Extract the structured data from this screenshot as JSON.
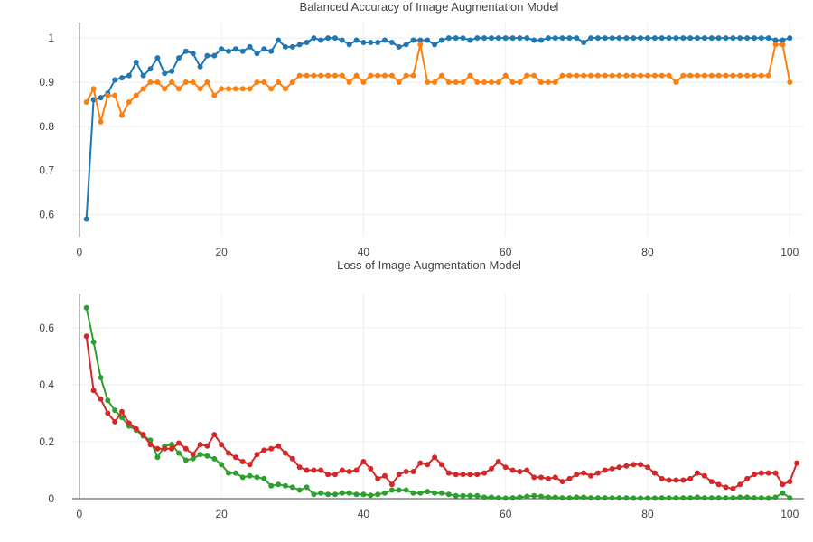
{
  "chart_data": [
    {
      "type": "line",
      "title": "Balanced Accuracy of Image Augmentation Model",
      "xlim": [
        -1,
        102
      ],
      "ylim": [
        0.55,
        1.035
      ],
      "xticks": [
        0,
        20,
        40,
        60,
        80,
        100
      ],
      "yticks": [
        0.6,
        0.7,
        0.8,
        0.9,
        1
      ],
      "ytick_labels": [
        "0.6",
        "0.7",
        "0.8",
        "0.9",
        "1"
      ],
      "grid": true,
      "colors": [
        "#1f77b4",
        "#ff7f0e"
      ],
      "series": [
        {
          "values": [
            0.59,
            0.86,
            0.865,
            0.875,
            0.905,
            0.91,
            0.915,
            0.945,
            0.915,
            0.93,
            0.955,
            0.92,
            0.925,
            0.955,
            0.97,
            0.965,
            0.935,
            0.96,
            0.96,
            0.975,
            0.97,
            0.975,
            0.97,
            0.98,
            0.965,
            0.975,
            0.97,
            0.995,
            0.98,
            0.98,
            0.985,
            0.99,
            1.0,
            0.995,
            1.0,
            1.0,
            0.995,
            0.985,
            0.995,
            0.99,
            0.99,
            0.99,
            0.995,
            0.99,
            0.98,
            0.985,
            0.995,
            0.995,
            0.995,
            0.985,
            0.995,
            1.0,
            1.0,
            1.0,
            0.995,
            1.0,
            1.0,
            1.0,
            1.0,
            1.0,
            1.0,
            1.0,
            1.0,
            0.995,
            0.995,
            1.0,
            1.0,
            1.0,
            1.0,
            1.0,
            0.99,
            1.0,
            1.0,
            1.0,
            1.0,
            1.0,
            1.0,
            1.0,
            1.0,
            1.0,
            1.0,
            1.0,
            1.0,
            1.0,
            1.0,
            1.0,
            1.0,
            1.0,
            1.0,
            1.0,
            1.0,
            1.0,
            1.0,
            1.0,
            1.0,
            1.0,
            1.0,
            0.995,
            0.995,
            1.0
          ]
        },
        {
          "values": [
            0.855,
            0.885,
            0.81,
            0.87,
            0.87,
            0.825,
            0.855,
            0.87,
            0.885,
            0.9,
            0.9,
            0.885,
            0.9,
            0.885,
            0.9,
            0.9,
            0.885,
            0.9,
            0.87,
            0.885,
            0.885,
            0.885,
            0.885,
            0.885,
            0.9,
            0.9,
            0.885,
            0.9,
            0.885,
            0.9,
            0.915,
            0.915,
            0.915,
            0.915,
            0.915,
            0.915,
            0.915,
            0.9,
            0.915,
            0.9,
            0.915,
            0.915,
            0.915,
            0.915,
            0.9,
            0.915,
            0.915,
            0.985,
            0.9,
            0.9,
            0.915,
            0.9,
            0.9,
            0.9,
            0.915,
            0.9,
            0.9,
            0.9,
            0.9,
            0.915,
            0.9,
            0.9,
            0.915,
            0.915,
            0.9,
            0.9,
            0.9,
            0.915,
            0.915,
            0.915,
            0.915,
            0.915,
            0.915,
            0.915,
            0.915,
            0.915,
            0.915,
            0.915,
            0.915,
            0.915,
            0.915,
            0.915,
            0.915,
            0.9,
            0.915,
            0.915,
            0.915,
            0.915,
            0.915,
            0.915,
            0.915,
            0.915,
            0.915,
            0.915,
            0.915,
            0.915,
            0.915,
            0.985,
            0.985,
            0.9
          ]
        }
      ]
    },
    {
      "type": "line",
      "title": "Loss of Image Augmentation Model",
      "xlim": [
        -1,
        102
      ],
      "ylim": [
        0,
        0.72
      ],
      "xticks": [
        0,
        20,
        40,
        60,
        80,
        100
      ],
      "yticks": [
        0,
        0.2,
        0.4,
        0.6
      ],
      "ytick_labels": [
        "0",
        "0.2",
        "0.4",
        "0.6"
      ],
      "grid": true,
      "colors": [
        "#2ca02c",
        "#d62728"
      ],
      "series": [
        {
          "values": [
            0.67,
            0.55,
            0.425,
            0.345,
            0.31,
            0.285,
            0.255,
            0.24,
            0.22,
            0.205,
            0.145,
            0.185,
            0.19,
            0.16,
            0.135,
            0.14,
            0.155,
            0.15,
            0.14,
            0.12,
            0.09,
            0.09,
            0.075,
            0.08,
            0.075,
            0.07,
            0.045,
            0.05,
            0.045,
            0.04,
            0.03,
            0.04,
            0.015,
            0.02,
            0.015,
            0.015,
            0.02,
            0.02,
            0.015,
            0.015,
            0.012,
            0.015,
            0.02,
            0.03,
            0.03,
            0.03,
            0.02,
            0.02,
            0.025,
            0.02,
            0.02,
            0.015,
            0.01,
            0.01,
            0.01,
            0.01,
            0.005,
            0.005,
            0.003,
            0.002,
            0.003,
            0.005,
            0.008,
            0.01,
            0.008,
            0.005,
            0.005,
            0.003,
            0.003,
            0.005,
            0.005,
            0.003,
            0.003,
            0.003,
            0.003,
            0.003,
            0.003,
            0.002,
            0.002,
            0.002,
            0.002,
            0.003,
            0.003,
            0.003,
            0.003,
            0.003,
            0.005,
            0.003,
            0.003,
            0.003,
            0.003,
            0.003,
            0.005,
            0.005,
            0.003,
            0.003,
            0.002,
            0.005,
            0.02,
            0.003
          ]
        },
        {
          "values": [
            0.57,
            0.38,
            0.35,
            0.3,
            0.27,
            0.305,
            0.265,
            0.245,
            0.225,
            0.19,
            0.175,
            0.175,
            0.175,
            0.195,
            0.175,
            0.155,
            0.19,
            0.185,
            0.225,
            0.19,
            0.16,
            0.145,
            0.13,
            0.12,
            0.155,
            0.17,
            0.175,
            0.185,
            0.16,
            0.14,
            0.11,
            0.1,
            0.1,
            0.1,
            0.085,
            0.085,
            0.1,
            0.095,
            0.1,
            0.13,
            0.105,
            0.07,
            0.08,
            0.05,
            0.085,
            0.095,
            0.095,
            0.125,
            0.12,
            0.145,
            0.12,
            0.09,
            0.085,
            0.085,
            0.085,
            0.085,
            0.09,
            0.105,
            0.13,
            0.11,
            0.1,
            0.095,
            0.1,
            0.075,
            0.075,
            0.07,
            0.075,
            0.06,
            0.07,
            0.085,
            0.09,
            0.08,
            0.09,
            0.1,
            0.105,
            0.11,
            0.115,
            0.12,
            0.12,
            0.11,
            0.09,
            0.07,
            0.065,
            0.065,
            0.065,
            0.07,
            0.09,
            0.08,
            0.06,
            0.05,
            0.04,
            0.035,
            0.05,
            0.07,
            0.085,
            0.09,
            0.09,
            0.09,
            0.05,
            0.06,
            0.125
          ]
        }
      ]
    }
  ]
}
